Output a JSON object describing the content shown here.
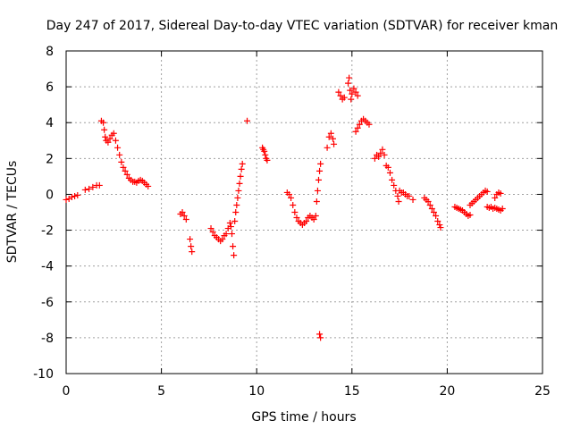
{
  "chart_data": {
    "type": "scatter",
    "title": "Day 247 of 2017, Sidereal Day-to-day VTEC variation (SDTVAR) for receiver kman",
    "xlabel": "GPS time / hours",
    "ylabel": "SDTVAR / TECUs",
    "xlim": [
      0,
      25
    ],
    "ylim": [
      -10,
      8
    ],
    "xticks": [
      0,
      5,
      10,
      15,
      20,
      25
    ],
    "yticks": [
      -10,
      -8,
      -6,
      -4,
      -2,
      0,
      2,
      4,
      6,
      8
    ],
    "grid": true,
    "marker": "+",
    "color": "#ff0000",
    "series": [
      {
        "name": "SDTVAR",
        "segments": [
          [
            [
              0.0,
              -0.3
            ],
            [
              0.15,
              -0.25
            ],
            [
              0.3,
              -0.15
            ],
            [
              0.45,
              -0.1
            ],
            [
              0.6,
              -0.05
            ]
          ],
          [
            [
              1.0,
              0.25
            ],
            [
              1.2,
              0.3
            ],
            [
              1.4,
              0.4
            ],
            [
              1.6,
              0.5
            ],
            [
              1.75,
              0.5
            ]
          ],
          [
            [
              1.85,
              4.1
            ],
            [
              1.95,
              4.0
            ],
            [
              2.0,
              3.6
            ],
            [
              2.05,
              3.2
            ],
            [
              2.1,
              3.0
            ],
            [
              2.2,
              2.9
            ],
            [
              2.3,
              3.1
            ],
            [
              2.4,
              3.3
            ],
            [
              2.5,
              3.4
            ],
            [
              2.6,
              3.0
            ],
            [
              2.7,
              2.6
            ],
            [
              2.8,
              2.2
            ],
            [
              2.9,
              1.8
            ],
            [
              3.0,
              1.5
            ],
            [
              3.1,
              1.3
            ],
            [
              3.2,
              1.1
            ],
            [
              3.3,
              0.9
            ],
            [
              3.4,
              0.8
            ],
            [
              3.5,
              0.7
            ],
            [
              3.6,
              0.7
            ],
            [
              3.7,
              0.65
            ],
            [
              3.8,
              0.75
            ],
            [
              3.9,
              0.8
            ],
            [
              4.0,
              0.75
            ],
            [
              4.1,
              0.65
            ],
            [
              4.2,
              0.55
            ],
            [
              4.3,
              0.45
            ]
          ],
          [
            [
              6.0,
              -1.1
            ],
            [
              6.1,
              -1.0
            ],
            [
              6.2,
              -1.2
            ],
            [
              6.3,
              -1.4
            ]
          ],
          [
            [
              6.5,
              -2.5
            ],
            [
              6.55,
              -2.9
            ],
            [
              6.6,
              -3.2
            ]
          ],
          [
            [
              7.6,
              -1.9
            ],
            [
              7.7,
              -2.1
            ],
            [
              7.8,
              -2.3
            ],
            [
              7.9,
              -2.4
            ],
            [
              8.0,
              -2.5
            ],
            [
              8.1,
              -2.6
            ],
            [
              8.2,
              -2.5
            ],
            [
              8.3,
              -2.3
            ],
            [
              8.4,
              -2.2
            ],
            [
              8.5,
              -1.9
            ]
          ],
          [
            [
              8.6,
              -1.6
            ],
            [
              8.65,
              -1.8
            ],
            [
              8.7,
              -2.2
            ],
            [
              8.75,
              -2.9
            ],
            [
              8.8,
              -3.4
            ],
            [
              8.85,
              -1.5
            ],
            [
              8.9,
              -1.0
            ],
            [
              8.95,
              -0.6
            ],
            [
              9.0,
              -0.2
            ],
            [
              9.05,
              0.2
            ],
            [
              9.1,
              0.6
            ],
            [
              9.15,
              1.0
            ],
            [
              9.2,
              1.4
            ],
            [
              9.25,
              1.7
            ]
          ],
          [
            [
              9.5,
              4.1
            ]
          ],
          [
            [
              10.3,
              2.6
            ],
            [
              10.35,
              2.5
            ],
            [
              10.4,
              2.4
            ],
            [
              10.45,
              2.2
            ],
            [
              10.5,
              2.0
            ],
            [
              10.55,
              1.9
            ]
          ],
          [
            [
              11.6,
              0.1
            ],
            [
              11.7,
              0.0
            ],
            [
              11.8,
              -0.2
            ],
            [
              11.9,
              -0.6
            ],
            [
              12.0,
              -1.0
            ],
            [
              12.1,
              -1.3
            ],
            [
              12.2,
              -1.5
            ],
            [
              12.3,
              -1.6
            ],
            [
              12.4,
              -1.7
            ],
            [
              12.5,
              -1.6
            ],
            [
              12.6,
              -1.5
            ],
            [
              12.7,
              -1.3
            ],
            [
              12.8,
              -1.2
            ],
            [
              12.9,
              -1.3
            ],
            [
              13.0,
              -1.4
            ]
          ],
          [
            [
              13.1,
              -1.2
            ],
            [
              13.15,
              -0.4
            ],
            [
              13.2,
              0.2
            ],
            [
              13.25,
              0.8
            ],
            [
              13.3,
              1.3
            ],
            [
              13.35,
              1.7
            ]
          ],
          [
            [
              13.3,
              -7.8
            ],
            [
              13.35,
              -8.0
            ]
          ],
          [
            [
              13.7,
              2.6
            ],
            [
              13.8,
              3.2
            ],
            [
              13.9,
              3.4
            ],
            [
              14.0,
              3.1
            ],
            [
              14.05,
              2.8
            ]
          ],
          [
            [
              14.3,
              5.7
            ],
            [
              14.4,
              5.5
            ],
            [
              14.5,
              5.3
            ],
            [
              14.6,
              5.4
            ]
          ],
          [
            [
              14.8,
              6.2
            ],
            [
              14.85,
              6.5
            ],
            [
              14.9,
              5.8
            ],
            [
              14.95,
              5.3
            ],
            [
              15.0,
              5.6
            ],
            [
              15.1,
              5.9
            ],
            [
              15.2,
              5.7
            ],
            [
              15.3,
              5.5
            ]
          ],
          [
            [
              15.2,
              3.5
            ],
            [
              15.3,
              3.7
            ],
            [
              15.4,
              3.9
            ],
            [
              15.5,
              4.1
            ],
            [
              15.6,
              4.2
            ],
            [
              15.7,
              4.1
            ],
            [
              15.8,
              4.0
            ],
            [
              15.9,
              3.9
            ]
          ],
          [
            [
              16.2,
              2.0
            ],
            [
              16.3,
              2.2
            ],
            [
              16.4,
              2.1
            ],
            [
              16.5,
              2.3
            ],
            [
              16.6,
              2.5
            ],
            [
              16.7,
              2.2
            ]
          ],
          [
            [
              16.8,
              1.6
            ],
            [
              16.9,
              1.5
            ],
            [
              17.0,
              1.2
            ],
            [
              17.1,
              0.8
            ],
            [
              17.2,
              0.5
            ],
            [
              17.3,
              0.2
            ],
            [
              17.4,
              -0.1
            ],
            [
              17.45,
              -0.4
            ],
            [
              17.5,
              0.2
            ],
            [
              17.6,
              0.1
            ],
            [
              17.7,
              0.1
            ],
            [
              17.8,
              0.0
            ],
            [
              17.9,
              -0.1
            ],
            [
              18.0,
              -0.1
            ]
          ],
          [
            [
              18.2,
              -0.3
            ]
          ],
          [
            [
              18.8,
              -0.2
            ],
            [
              18.9,
              -0.3
            ],
            [
              19.0,
              -0.4
            ],
            [
              19.1,
              -0.6
            ],
            [
              19.2,
              -0.8
            ],
            [
              19.3,
              -1.0
            ],
            [
              19.4,
              -1.2
            ],
            [
              19.5,
              -1.5
            ],
            [
              19.6,
              -1.7
            ],
            [
              19.65,
              -1.85
            ]
          ],
          [
            [
              20.4,
              -0.7
            ],
            [
              20.5,
              -0.75
            ],
            [
              20.6,
              -0.8
            ],
            [
              20.7,
              -0.85
            ],
            [
              20.8,
              -0.9
            ],
            [
              20.9,
              -1.0
            ],
            [
              21.0,
              -1.1
            ],
            [
              21.1,
              -1.2
            ],
            [
              21.2,
              -1.15
            ]
          ],
          [
            [
              21.2,
              -0.6
            ],
            [
              21.3,
              -0.5
            ],
            [
              21.4,
              -0.4
            ],
            [
              21.5,
              -0.3
            ],
            [
              21.6,
              -0.2
            ],
            [
              21.7,
              -0.1
            ],
            [
              21.8,
              0.0
            ],
            [
              21.9,
              0.1
            ],
            [
              22.0,
              0.2
            ],
            [
              22.1,
              0.15
            ]
          ],
          [
            [
              22.1,
              -0.7
            ],
            [
              22.2,
              -0.75
            ],
            [
              22.3,
              -0.7
            ],
            [
              22.4,
              -0.8
            ],
            [
              22.5,
              -0.75
            ],
            [
              22.6,
              -0.8
            ],
            [
              22.7,
              -0.85
            ],
            [
              22.8,
              -0.9
            ],
            [
              22.9,
              -0.8
            ]
          ],
          [
            [
              22.5,
              -0.2
            ],
            [
              22.6,
              0.0
            ],
            [
              22.7,
              0.1
            ],
            [
              22.8,
              0.05
            ]
          ]
        ]
      }
    ]
  }
}
